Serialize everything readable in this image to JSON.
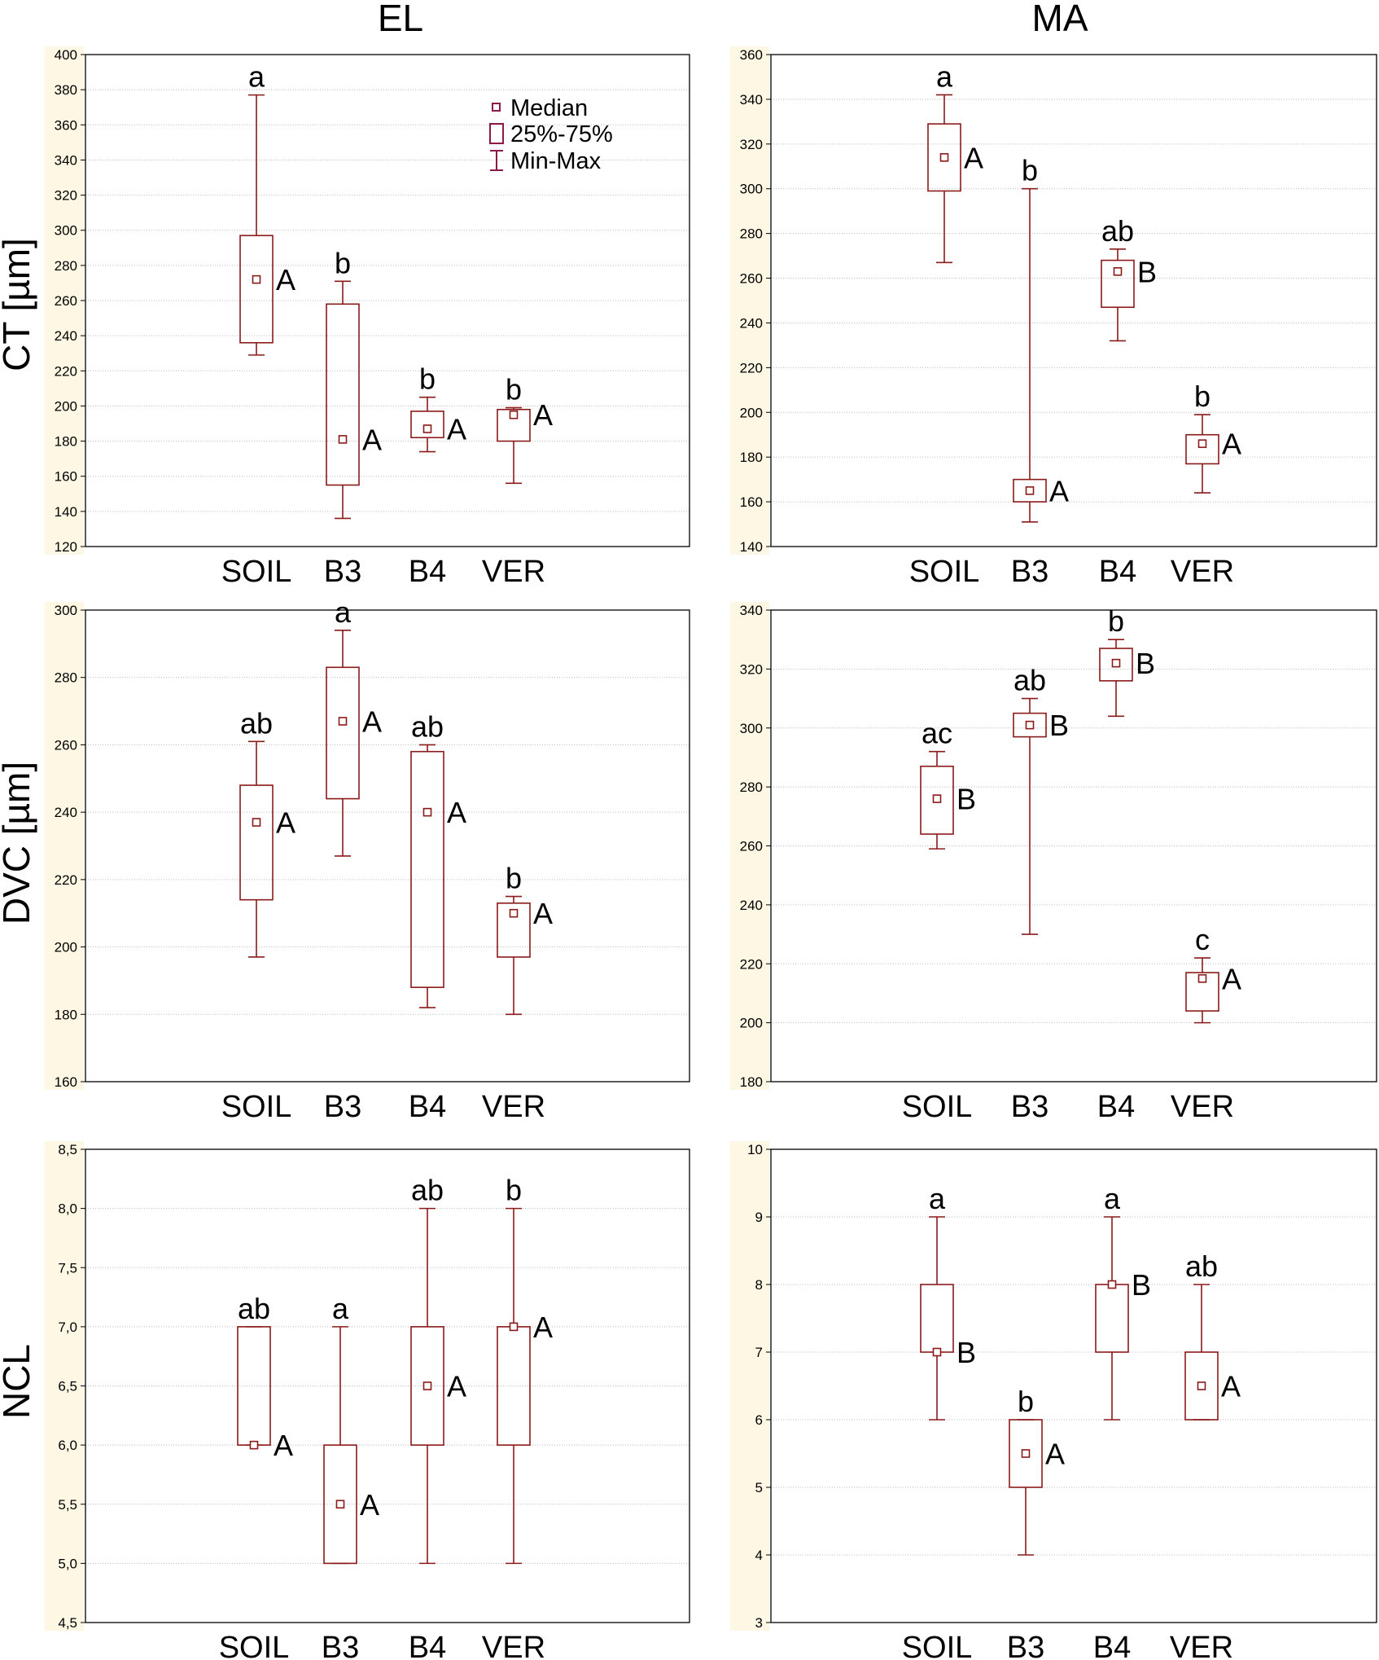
{
  "col_titles": [
    "EL",
    "MA"
  ],
  "row_labels": [
    "CT [µm]",
    "DVC [µm]",
    "NCL"
  ],
  "legend": {
    "median": "Median",
    "box": "25%-75%",
    "whisker": "Min-Max"
  },
  "colors": {
    "box": "#8b1a1a",
    "legend": "#8b1a4a",
    "grid": "#bbbbbb",
    "ytick_bg": "#fdf7e3"
  },
  "chart_data": [
    {
      "type": "box",
      "column": "EL",
      "row": "CT [µm]",
      "ylim": [
        120,
        400
      ],
      "yticks": [
        "120",
        "140",
        "160",
        "180",
        "200",
        "220",
        "240",
        "260",
        "280",
        "300",
        "320",
        "340",
        "360",
        "380",
        "400"
      ],
      "categories": [
        "SOIL",
        "B3",
        "B4",
        "VER"
      ],
      "boxes": [
        {
          "min": 229,
          "q1": 236,
          "median": 272,
          "q3": 297,
          "max": 377,
          "lower": "a",
          "upper": "A"
        },
        {
          "min": 136,
          "q1": 155,
          "median": 181,
          "q3": 258,
          "max": 271,
          "lower": "b",
          "upper": "A"
        },
        {
          "min": 174,
          "q1": 182,
          "median": 187,
          "q3": 197,
          "max": 205,
          "lower": "b",
          "upper": "A"
        },
        {
          "min": 156,
          "q1": 180,
          "median": 195,
          "q3": 198,
          "max": 199,
          "lower": "b",
          "upper": "A"
        }
      ]
    },
    {
      "type": "box",
      "column": "MA",
      "row": "CT [µm]",
      "ylim": [
        140,
        360
      ],
      "yticks": [
        "140",
        "160",
        "180",
        "200",
        "220",
        "240",
        "260",
        "280",
        "300",
        "320",
        "340",
        "360"
      ],
      "categories": [
        "SOIL",
        "B3",
        "B4",
        "VER"
      ],
      "boxes": [
        {
          "min": 267,
          "q1": 299,
          "median": 314,
          "q3": 329,
          "max": 342,
          "lower": "a",
          "upper": "A"
        },
        {
          "min": 151,
          "q1": 160,
          "median": 165,
          "q3": 170,
          "max": 300,
          "lower": "b",
          "upper": "A"
        },
        {
          "min": 232,
          "q1": 247,
          "median": 263,
          "q3": 268,
          "max": 273,
          "lower": "ab",
          "upper": "B"
        },
        {
          "min": 164,
          "q1": 177,
          "median": 186,
          "q3": 190,
          "max": 199,
          "lower": "b",
          "upper": "A"
        }
      ]
    },
    {
      "type": "box",
      "column": "EL",
      "row": "DVC [µm]",
      "ylim": [
        160,
        300
      ],
      "yticks": [
        "160",
        "180",
        "200",
        "220",
        "240",
        "260",
        "280",
        "300"
      ],
      "categories": [
        "SOIL",
        "B3",
        "B4",
        "VER"
      ],
      "boxes": [
        {
          "min": 197,
          "q1": 214,
          "median": 237,
          "q3": 248,
          "max": 261,
          "lower": "ab",
          "upper": "A"
        },
        {
          "min": 227,
          "q1": 244,
          "median": 267,
          "q3": 283,
          "max": 294,
          "lower": "a",
          "upper": "A"
        },
        {
          "min": 182,
          "q1": 188,
          "median": 240,
          "q3": 258,
          "max": 260,
          "lower": "ab",
          "upper": "A"
        },
        {
          "min": 180,
          "q1": 197,
          "median": 210,
          "q3": 213,
          "max": 215,
          "lower": "b",
          "upper": "A"
        }
      ]
    },
    {
      "type": "box",
      "column": "MA",
      "row": "DVC [µm]",
      "ylim": [
        180,
        340
      ],
      "yticks": [
        "180",
        "200",
        "220",
        "240",
        "260",
        "280",
        "300",
        "320",
        "340"
      ],
      "categories": [
        "SOIL",
        "B3",
        "B4",
        "VER"
      ],
      "boxes": [
        {
          "min": 259,
          "q1": 264,
          "median": 276,
          "q3": 287,
          "max": 292,
          "lower": "ac",
          "upper": "B"
        },
        {
          "min": 230,
          "q1": 297,
          "median": 301,
          "q3": 305,
          "max": 310,
          "lower": "ab",
          "upper": "B"
        },
        {
          "min": 304,
          "q1": 316,
          "median": 322,
          "q3": 327,
          "max": 330,
          "lower": "b",
          "upper": "B"
        },
        {
          "min": 200,
          "q1": 204,
          "median": 215,
          "q3": 217,
          "max": 222,
          "lower": "c",
          "upper": "A"
        }
      ]
    },
    {
      "type": "box",
      "column": "EL",
      "row": "NCL",
      "ylim": [
        4.5,
        8.5
      ],
      "yticks": [
        "4,5",
        "5,0",
        "5,5",
        "6,0",
        "6,5",
        "7,0",
        "7,5",
        "8,0",
        "8,5"
      ],
      "categories": [
        "SOIL",
        "B3",
        "B4",
        "VER"
      ],
      "boxes": [
        {
          "min": 6,
          "q1": 6,
          "median": 6,
          "q3": 7,
          "max": 7,
          "lower": "ab",
          "upper": "A"
        },
        {
          "min": 5,
          "q1": 5,
          "median": 5.5,
          "q3": 6,
          "max": 7,
          "lower": "a",
          "upper": "A"
        },
        {
          "min": 5,
          "q1": 6,
          "median": 6.5,
          "q3": 7,
          "max": 8,
          "lower": "ab",
          "upper": "A"
        },
        {
          "min": 5,
          "q1": 6,
          "median": 7,
          "q3": 7,
          "max": 8,
          "lower": "b",
          "upper": "A"
        }
      ]
    },
    {
      "type": "box",
      "column": "MA",
      "row": "NCL",
      "ylim": [
        3,
        10
      ],
      "yticks": [
        "3",
        "4",
        "5",
        "6",
        "7",
        "8",
        "9",
        "10"
      ],
      "categories": [
        "SOIL",
        "B3",
        "B4",
        "VER"
      ],
      "boxes": [
        {
          "min": 6,
          "q1": 7,
          "median": 7,
          "q3": 8,
          "max": 9,
          "lower": "a",
          "upper": "B"
        },
        {
          "min": 4,
          "q1": 5,
          "median": 5.5,
          "q3": 6,
          "max": 6,
          "lower": "b",
          "upper": "A"
        },
        {
          "min": 6,
          "q1": 7,
          "median": 8,
          "q3": 8,
          "max": 9,
          "lower": "a",
          "upper": "B"
        },
        {
          "min": 6,
          "q1": 6,
          "median": 6.5,
          "q3": 7,
          "max": 8,
          "lower": "ab",
          "upper": "A"
        }
      ]
    }
  ]
}
